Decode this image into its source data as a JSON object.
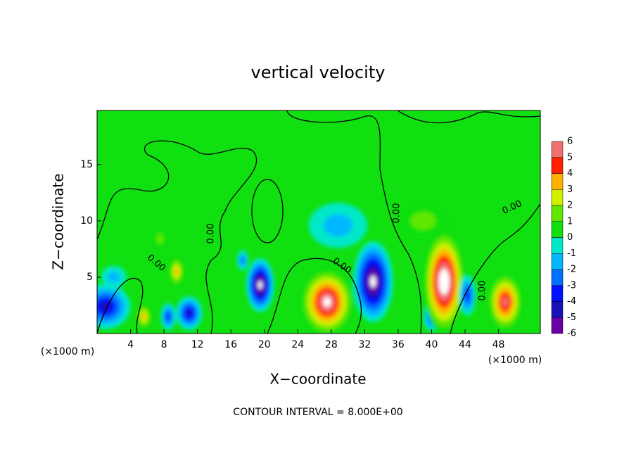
{
  "chart_data": {
    "type": "contour",
    "title": "vertical velocity",
    "x_label": "X−coordinate",
    "y_label": "Z−coordinate",
    "x_unit": "(×1000 m)",
    "footer": "CONTOUR INTERVAL = 8.000E+00",
    "contour_label": "0.00",
    "contour_levels": [
      0
    ],
    "xlim": [
      0,
      53
    ],
    "ylim": [
      0,
      19.8
    ],
    "xticks": [
      4,
      8,
      12,
      16,
      20,
      24,
      28,
      32,
      36,
      40,
      44,
      48
    ],
    "yticks": [
      5,
      10,
      15
    ],
    "colorbar_ticks": [
      -6,
      -5,
      -4,
      -3,
      -2,
      -1,
      0,
      1,
      2,
      3,
      4,
      5,
      6
    ],
    "colors": [
      "#6a00a8",
      "#1a10b8",
      "#0010ff",
      "#0070ff",
      "#00b8ff",
      "#00e8c8",
      "#10e010",
      "#60e800",
      "#d0f000",
      "#ffb000",
      "#ff2000",
      "#f07070"
    ],
    "features": [
      {
        "x": 1,
        "z": 2.4,
        "rx": 3,
        "rz": 2,
        "value": -5
      },
      {
        "x": 2,
        "z": 5,
        "rx": 1.5,
        "rz": 1,
        "value": -2
      },
      {
        "x": 5.6,
        "z": 1.5,
        "rx": 0.9,
        "rz": 1.1,
        "value": 4
      },
      {
        "x": 7.5,
        "z": 8.4,
        "rx": 0.8,
        "rz": 0.9,
        "value": 2
      },
      {
        "x": 8.5,
        "z": 1.5,
        "rx": 0.9,
        "rz": 1.2,
        "value": -4
      },
      {
        "x": 9.5,
        "z": 5.5,
        "rx": 0.9,
        "rz": 1.3,
        "value": 4
      },
      {
        "x": 11,
        "z": 1.8,
        "rx": 1.6,
        "rz": 1.5,
        "value": -5
      },
      {
        "x": 17.4,
        "z": 6.5,
        "rx": 0.7,
        "rz": 0.9,
        "value": -3
      },
      {
        "x": 19.5,
        "z": 4.3,
        "rx": 1.7,
        "rz": 2.4,
        "value": -7
      },
      {
        "x": 27.5,
        "z": 2.8,
        "rx": 3.2,
        "rz": 3,
        "value": 7
      },
      {
        "x": 28.8,
        "z": 9.6,
        "rx": 3.5,
        "rz": 2,
        "value": -2
      },
      {
        "x": 33,
        "z": 4.6,
        "rx": 2.4,
        "rz": 3.6,
        "value": -7
      },
      {
        "x": 39,
        "z": 10,
        "rx": 3,
        "rz": 1.6,
        "value": 2
      },
      {
        "x": 40,
        "z": 1.5,
        "rx": 1,
        "rz": 1.3,
        "value": -4
      },
      {
        "x": 41.5,
        "z": 4.6,
        "rx": 2.5,
        "rz": 4.6,
        "value": 8
      },
      {
        "x": 44.3,
        "z": 3.4,
        "rx": 1,
        "rz": 1.8,
        "value": -4
      },
      {
        "x": 48.8,
        "z": 2.8,
        "rx": 2.1,
        "rz": 2.6,
        "value": 6
      }
    ]
  }
}
